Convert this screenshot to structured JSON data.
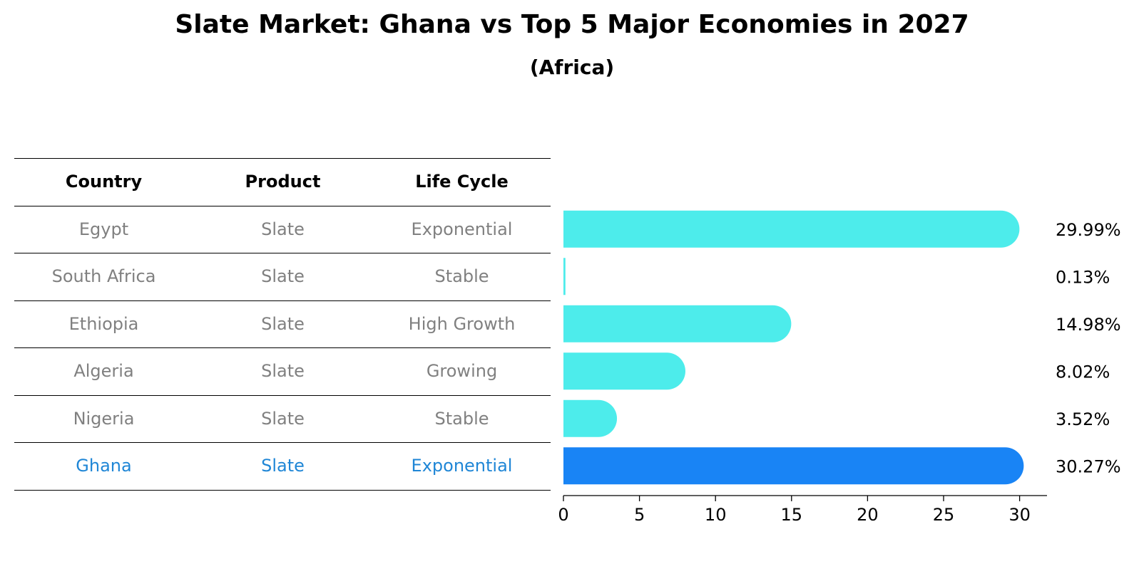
{
  "title": "Slate Market: Ghana vs Top 5 Major Economies in 2027",
  "subtitle": "(Africa)",
  "table": {
    "headers": [
      "Country",
      "Product",
      "Life Cycle"
    ],
    "rows": [
      [
        "Egypt",
        "Slate",
        "Exponential"
      ],
      [
        "South Africa",
        "Slate",
        "Stable"
      ],
      [
        "Ethiopia",
        "Slate",
        "High Growth"
      ],
      [
        "Algeria",
        "Slate",
        "Growing"
      ],
      [
        "Nigeria",
        "Slate",
        "Stable"
      ],
      [
        "Ghana",
        "Slate",
        "Exponential"
      ]
    ],
    "highlight_row": 5
  },
  "colors": {
    "bar": "#4deceb",
    "highlight_bar": "#1984f5",
    "highlight_text": "#1f86d6",
    "muted_text": "#808080"
  },
  "chart_data": {
    "type": "bar",
    "orientation": "horizontal",
    "categories": [
      "Egypt",
      "South Africa",
      "Ethiopia",
      "Algeria",
      "Nigeria",
      "Ghana"
    ],
    "values": [
      29.99,
      0.13,
      14.98,
      8.02,
      3.52,
      30.27
    ],
    "value_labels": [
      "29.99%",
      "0.13%",
      "14.98%",
      "8.02%",
      "3.52%",
      "30.27%"
    ],
    "highlight": "Ghana",
    "xlim": [
      0,
      31.8
    ],
    "xticks": [
      0,
      5,
      10,
      15,
      20,
      25,
      30
    ],
    "grid": false
  }
}
